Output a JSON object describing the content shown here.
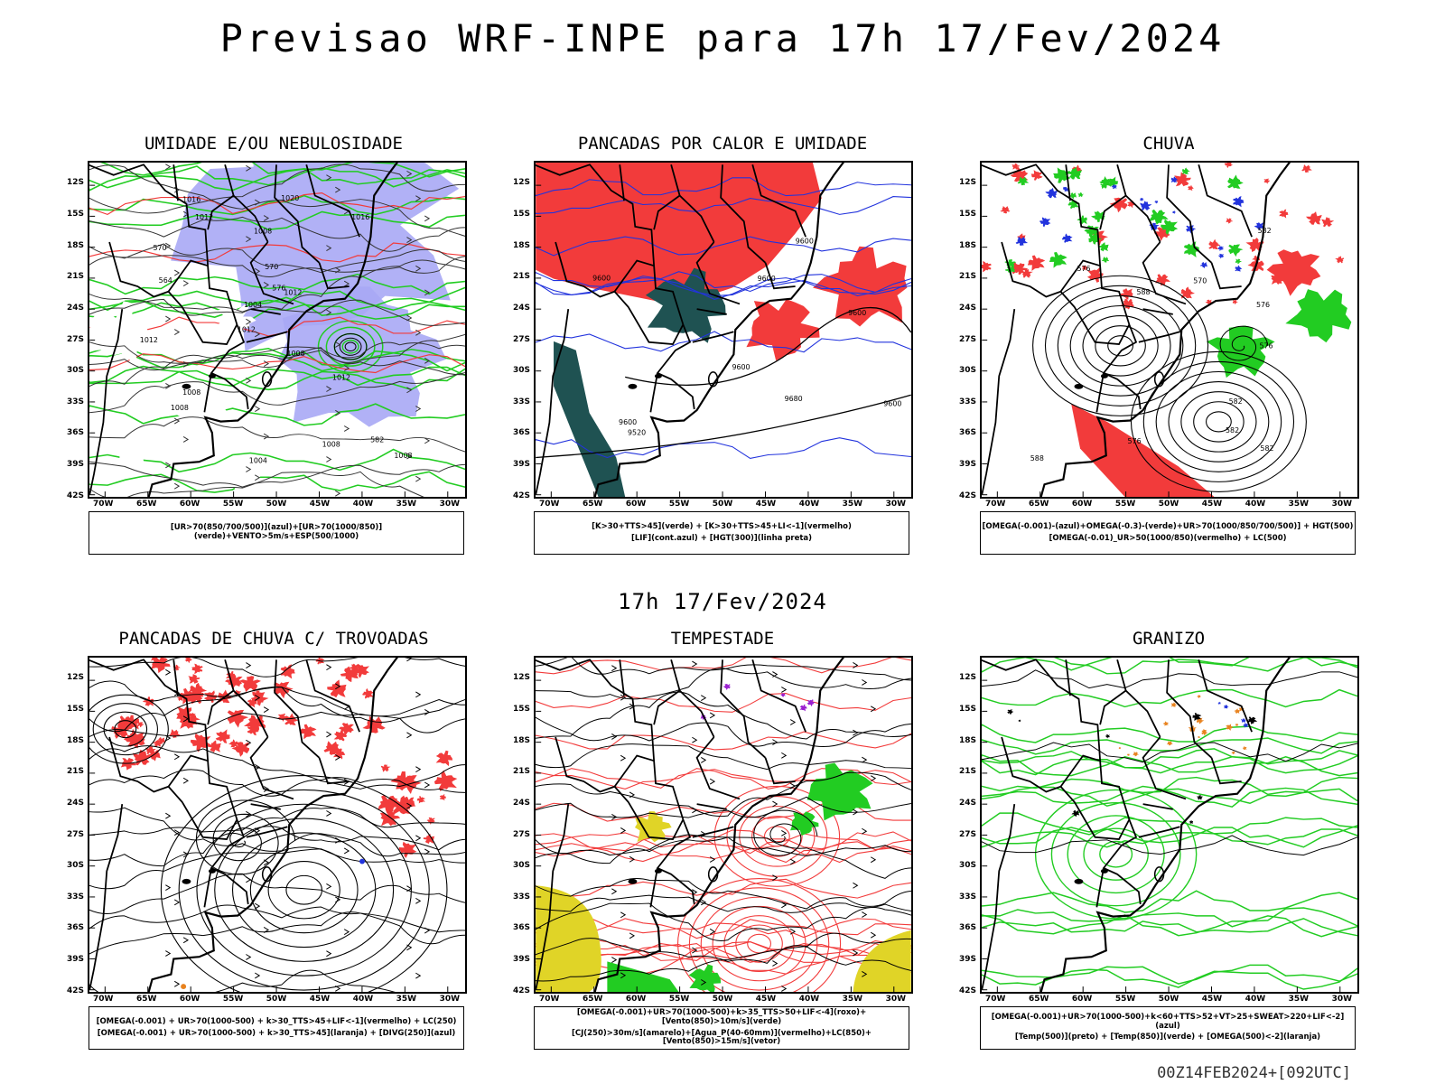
{
  "main_title": "Previsao WRF-INPE  para 17h 17/Fev/2024",
  "mid_title": "17h 17/Fev/2024",
  "footer": "00Z14FEB2024+[092UTC]",
  "lat_labels": [
    "12S",
    "15S",
    "18S",
    "21S",
    "24S",
    "27S",
    "30S",
    "33S",
    "36S",
    "39S",
    "42S"
  ],
  "lon_labels": [
    "70W",
    "65W",
    "60W",
    "55W",
    "50W",
    "45W",
    "40W",
    "35W",
    "30W"
  ],
  "colors": {
    "azul": "#a9a9f5",
    "verde": "#22cc22",
    "vermelho": "#f23b3b",
    "teal": "#1f5252",
    "amarelo": "#e0d427",
    "laranja": "#e8821e",
    "roxo": "#9a1fd0"
  },
  "panels": [
    {
      "id": "umidade",
      "title": "UMIDADE E/OU NEBULOSIDADE",
      "legend": [
        "[UR>70(850/700/500)](azul)+[UR>70(1000/850)](verde)+VENTO>5m/s+ESP(500/1000)"
      ],
      "contour_labels": [
        "1008",
        "1008",
        "1008",
        "1012",
        "1012",
        "1016",
        "1004",
        "1004",
        "1008",
        "1012",
        "1008",
        "1008",
        "1016",
        "1012",
        "1020",
        "1012",
        "570",
        "576",
        "582",
        "564",
        "570"
      ]
    },
    {
      "id": "pancadas_calor",
      "title": "PANCADAS POR CALOR E UMIDADE",
      "legend": [
        "[K>30+TTS>45](verde) + [K>30+TTS>45+LI<-1](vermelho)",
        "[LIF](cont.azul) + [HGT(300)](linha preta)"
      ],
      "contour_labels": [
        "9680",
        "9600",
        "9600",
        "9600",
        "9600",
        "9520",
        "9600",
        "9600",
        "9600"
      ]
    },
    {
      "id": "chuva",
      "title": "CHUVA",
      "legend": [
        "[OMEGA(-0.001)-(azul)+OMEGA(-0.3)-(verde)+UR>70(1000/850/700/500)] + HGT(500)",
        "[OMEGA(-0.01)_UR>50(1000/850)(vermelho) + LC(500)"
      ],
      "contour_labels": [
        "576",
        "582",
        "588",
        "582",
        "576",
        "576",
        "582",
        "588",
        "582",
        "576",
        "570"
      ]
    },
    {
      "id": "pancadas_trovoadas",
      "title": "PANCADAS DE CHUVA C/ TROVOADAS",
      "legend": [
        "[OMEGA(-0.001) + UR>70(1000-500) + k>30_TTS>45+LIF<-1](vermelho) + LC(250)",
        "[OMEGA(-0.001) + UR>70(1000-500) + k>30_TTS>45](laranja) + [DIVG(250)](azul)"
      ],
      "contour_labels": []
    },
    {
      "id": "tempestade",
      "title": "TEMPESTADE",
      "legend": [
        "[OMEGA(-0.001)+UR>70(1000-500)+k>35_TTS>50+LIF<-4](roxo)+[Vento(850)>10m/s](verde)",
        "[CJ(250)>30m/s](amarelo)+[Agua_P(40-60mm)](vermelho)+LC(850)+[Vento(850)>15m/s](vetor)"
      ],
      "contour_labels": []
    },
    {
      "id": "granizo",
      "title": "GRANIZO",
      "legend": [
        "[OMEGA(-0.001)+UR>70(1000-500)+k<60+TTS>52+VT>25+SWEAT>220+LIF<-2](azul)",
        "[Temp(500)](preto) + [Temp(850)](verde) + [OMEGA(500)<-2](laranja)"
      ],
      "contour_labels": []
    }
  ]
}
